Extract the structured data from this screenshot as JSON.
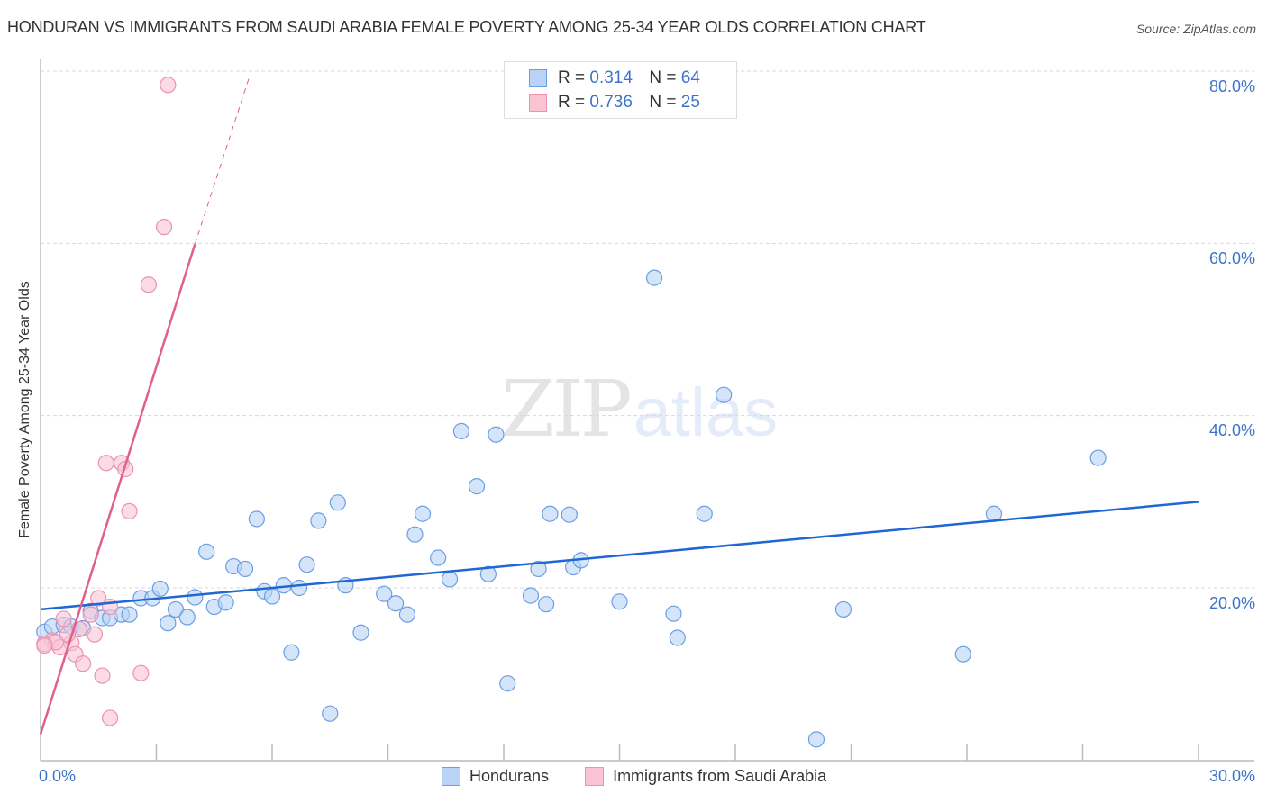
{
  "header": {
    "title": "HONDURAN VS IMMIGRANTS FROM SAUDI ARABIA FEMALE POVERTY AMONG 25-34 YEAR OLDS CORRELATION CHART",
    "source": "Source: ZipAtlas.com"
  },
  "watermark": {
    "zip": "ZIP",
    "atlas": "atlas"
  },
  "axes": {
    "ylabel": "Female Poverty Among 25-34 Year Olds",
    "yticks": [
      "80.0%",
      "60.0%",
      "40.0%",
      "20.0%"
    ],
    "xticks": [
      "0.0%",
      "30.0%"
    ]
  },
  "legend_top": {
    "rows": [
      {
        "r_label": "R =",
        "r_value": "0.314",
        "n_label": "N =",
        "n_value": "64"
      },
      {
        "r_label": "R =",
        "r_value": "0.736",
        "n_label": "N =",
        "n_value": "25"
      }
    ]
  },
  "legend_bottom": {
    "items": [
      {
        "label": "Hondurans"
      },
      {
        "label": "Immigrants from Saudi Arabia"
      }
    ]
  },
  "colors": {
    "blue_fill": "#b8d3f5",
    "blue_stroke": "#6b9ee3",
    "blue_line": "#1f67d2",
    "pink_fill": "#f9c3d3",
    "pink_stroke": "#ec93ae",
    "pink_line": "#e0608a",
    "axis_label": "#3b74cc",
    "grid": "#d8d8d8"
  },
  "chart_data": {
    "type": "scatter",
    "title": "HONDURAN VS IMMIGRANTS FROM SAUDI ARABIA FEMALE POVERTY AMONG 25-34 YEAR OLDS CORRELATION CHART",
    "xlabel": "",
    "ylabel": "Female Poverty Among 25-34 Year Olds",
    "xlim": [
      0,
      30
    ],
    "ylim": [
      0,
      82
    ],
    "x_unit": "%",
    "y_unit": "%",
    "yticks": [
      20,
      40,
      60,
      80
    ],
    "xticks": [
      0,
      30
    ],
    "grid": {
      "horizontal": true,
      "style": "dashed"
    },
    "legend_position": "top-center and bottom",
    "series": [
      {
        "name": "Hondurans",
        "R": 0.314,
        "N": 64,
        "color": "#6b9ee3",
        "trendline": {
          "x": [
            0,
            30
          ],
          "y": [
            17.5,
            30.0
          ]
        },
        "points": [
          [
            0.1,
            14.9
          ],
          [
            0.3,
            15.5
          ],
          [
            0.6,
            15.7
          ],
          [
            0.8,
            15.5
          ],
          [
            1.1,
            15.3
          ],
          [
            1.3,
            17.3
          ],
          [
            1.6,
            16.5
          ],
          [
            1.8,
            16.5
          ],
          [
            2.1,
            16.9
          ],
          [
            2.3,
            16.9
          ],
          [
            2.6,
            18.8
          ],
          [
            2.9,
            18.8
          ],
          [
            3.1,
            19.9
          ],
          [
            3.3,
            15.9
          ],
          [
            3.5,
            17.5
          ],
          [
            3.8,
            16.6
          ],
          [
            4.0,
            18.9
          ],
          [
            4.3,
            24.2
          ],
          [
            4.5,
            17.8
          ],
          [
            4.8,
            18.3
          ],
          [
            5.0,
            22.5
          ],
          [
            5.3,
            22.2
          ],
          [
            5.6,
            28.0
          ],
          [
            5.8,
            19.6
          ],
          [
            6.0,
            19.0
          ],
          [
            6.3,
            20.3
          ],
          [
            6.5,
            12.5
          ],
          [
            6.7,
            20.0
          ],
          [
            6.9,
            22.7
          ],
          [
            7.2,
            27.8
          ],
          [
            7.5,
            5.4
          ],
          [
            7.7,
            29.9
          ],
          [
            7.9,
            20.3
          ],
          [
            8.3,
            14.8
          ],
          [
            8.9,
            19.3
          ],
          [
            9.2,
            18.2
          ],
          [
            9.5,
            16.9
          ],
          [
            9.7,
            26.2
          ],
          [
            9.9,
            28.6
          ],
          [
            10.3,
            23.5
          ],
          [
            10.6,
            21.0
          ],
          [
            10.9,
            38.2
          ],
          [
            11.3,
            31.8
          ],
          [
            11.6,
            21.6
          ],
          [
            11.8,
            37.8
          ],
          [
            12.1,
            8.9
          ],
          [
            12.7,
            19.1
          ],
          [
            12.9,
            22.2
          ],
          [
            13.1,
            18.1
          ],
          [
            13.2,
            28.6
          ],
          [
            13.7,
            28.5
          ],
          [
            13.8,
            22.4
          ],
          [
            14.0,
            23.2
          ],
          [
            15.0,
            18.4
          ],
          [
            15.9,
            56.0
          ],
          [
            16.4,
            17.0
          ],
          [
            16.5,
            14.2
          ],
          [
            17.2,
            28.6
          ],
          [
            17.7,
            42.4
          ],
          [
            20.1,
            2.4
          ],
          [
            20.8,
            17.5
          ],
          [
            23.9,
            12.3
          ],
          [
            24.7,
            28.6
          ],
          [
            27.4,
            35.1
          ]
        ]
      },
      {
        "name": "Immigrants from Saudi Arabia",
        "R": 0.736,
        "N": 25,
        "color": "#ec93ae",
        "trendline": {
          "x": [
            0.0,
            4.0
          ],
          "y": [
            3.0,
            59.9
          ],
          "dashed_extension": {
            "x": [
              4.0,
              5.4
            ],
            "y": [
              59.9,
              79.2
            ]
          }
        },
        "points": [
          [
            3.3,
            78.4
          ],
          [
            3.2,
            61.9
          ],
          [
            2.8,
            55.2
          ],
          [
            1.7,
            34.5
          ],
          [
            2.1,
            34.5
          ],
          [
            2.2,
            33.8
          ],
          [
            2.3,
            28.9
          ],
          [
            1.5,
            18.8
          ],
          [
            1.3,
            16.9
          ],
          [
            0.6,
            16.4
          ],
          [
            0.3,
            13.9
          ],
          [
            0.1,
            13.5
          ],
          [
            0.8,
            13.6
          ],
          [
            0.5,
            13.1
          ],
          [
            0.9,
            12.3
          ],
          [
            1.1,
            11.2
          ],
          [
            1.6,
            9.8
          ],
          [
            2.6,
            10.1
          ],
          [
            1.8,
            4.9
          ],
          [
            1.8,
            17.8
          ],
          [
            0.4,
            13.7
          ],
          [
            0.1,
            13.3
          ],
          [
            1.0,
            15.2
          ],
          [
            0.7,
            14.6
          ],
          [
            1.4,
            14.6
          ]
        ]
      }
    ]
  }
}
